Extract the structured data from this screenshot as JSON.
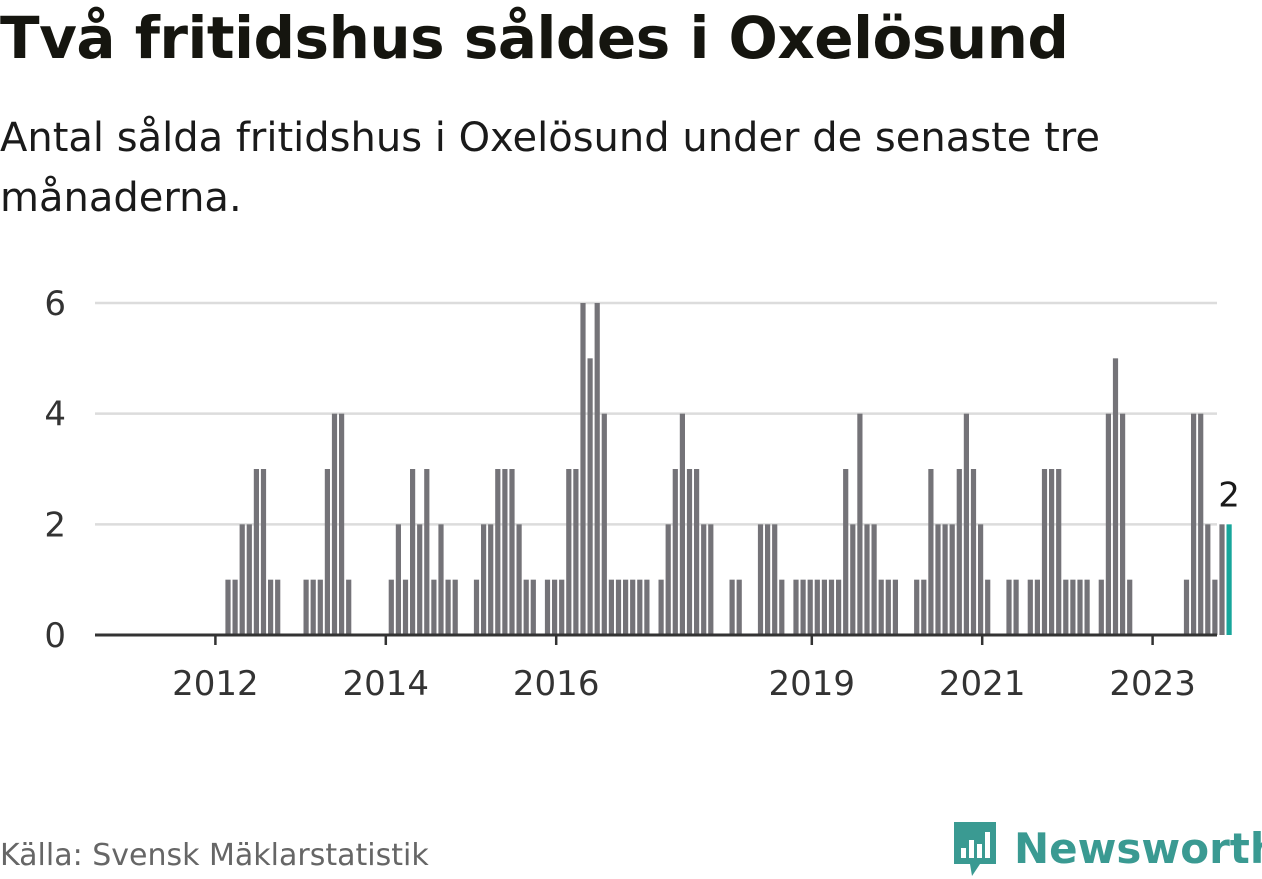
{
  "title": "Två fritidshus såldes i Oxelösund",
  "subtitle": "Antal sålda fritidshus i Oxelösund under de senaste tre månaderna.",
  "source": "Källa: Svensk Mäklarstatistik",
  "brand": "Newsworthy",
  "colors": {
    "bar": "#747378",
    "highlight": "#17a69b",
    "grid": "#dcdcdc",
    "axis": "#333333",
    "brand": "#3a9a92"
  },
  "chart_data": {
    "type": "bar",
    "ylim": [
      0,
      6
    ],
    "yticks": [
      0,
      2,
      4,
      6
    ],
    "grid": true,
    "xticks": [
      {
        "label": "2012",
        "index": 9
      },
      {
        "label": "2014",
        "index": 33
      },
      {
        "label": "2016",
        "index": 57
      },
      {
        "label": "2019",
        "index": 93
      },
      {
        "label": "2021",
        "index": 117
      },
      {
        "label": "2023",
        "index": 141
      }
    ],
    "values": [
      0,
      0,
      0,
      0,
      0,
      0,
      0,
      0,
      0,
      1,
      1,
      2,
      2,
      3,
      3,
      1,
      1,
      0,
      0,
      0,
      1,
      1,
      1,
      3,
      4,
      4,
      1,
      0,
      0,
      0,
      0,
      0,
      1,
      2,
      1,
      3,
      2,
      3,
      1,
      2,
      1,
      1,
      0,
      0,
      1,
      2,
      2,
      3,
      3,
      3,
      2,
      1,
      1,
      0,
      1,
      1,
      1,
      3,
      3,
      6,
      5,
      6,
      4,
      1,
      1,
      1,
      1,
      1,
      1,
      0,
      1,
      2,
      3,
      4,
      3,
      3,
      2,
      2,
      0,
      0,
      1,
      1,
      0,
      0,
      2,
      2,
      2,
      1,
      0,
      1,
      1,
      1,
      1,
      1,
      1,
      1,
      3,
      2,
      4,
      2,
      2,
      1,
      1,
      1,
      0,
      0,
      1,
      1,
      3,
      2,
      2,
      2,
      3,
      4,
      3,
      2,
      1,
      0,
      0,
      1,
      1,
      0,
      1,
      1,
      3,
      3,
      3,
      1,
      1,
      1,
      1,
      0,
      1,
      4,
      5,
      4,
      1,
      0,
      0,
      0,
      0,
      0,
      0,
      0,
      1,
      4,
      4,
      2,
      1,
      2,
      2
    ],
    "highlight_label": "2"
  }
}
